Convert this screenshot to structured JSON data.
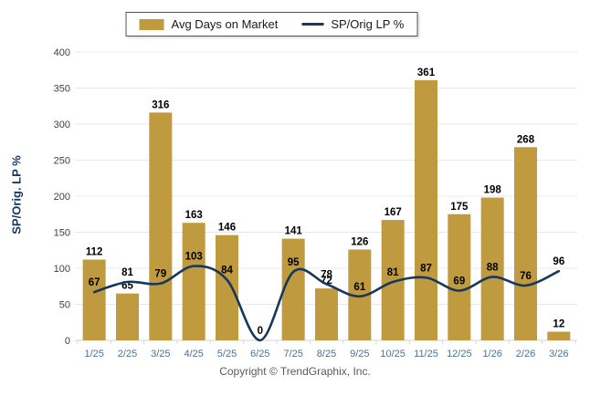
{
  "legend": {
    "bar_label": "Avg Days on Market",
    "line_label": "SP/Orig LP %"
  },
  "footer": {
    "copyright": "Copyright © TrendGraphix, Inc."
  },
  "colors": {
    "bar": "#c09a3e",
    "line": "#17375e",
    "grid": "#e8e8e8",
    "axis_line": "#d6d6d6",
    "y_tick_text": "#404040",
    "x_tick_text": "#4d7191",
    "data_label": "#000000",
    "y_title": "#17375e",
    "legend_border": "#44546a"
  },
  "chart_data": {
    "type": "bar",
    "title": "",
    "ylabel": "SP/Orig. LP %",
    "xlabel": "",
    "ylim": [
      0,
      400
    ],
    "ytick_step": 50,
    "grid": true,
    "legend_position": "top-center",
    "categories": [
      "1/25",
      "2/25",
      "3/25",
      "4/25",
      "5/25",
      "6/25",
      "7/25",
      "8/25",
      "9/25",
      "10/25",
      "11/25",
      "12/25",
      "1/26",
      "2/26",
      "3/26"
    ],
    "series": [
      {
        "name": "Avg Days on Market",
        "type": "bar",
        "values": [
          112,
          65,
          316,
          163,
          146,
          0,
          141,
          72,
          126,
          167,
          361,
          175,
          198,
          268,
          12
        ]
      },
      {
        "name": "SP/Orig LP %",
        "type": "line",
        "values": [
          67,
          81,
          79,
          103,
          84,
          0,
          95,
          78,
          61,
          81,
          87,
          69,
          88,
          76,
          96
        ]
      }
    ]
  }
}
